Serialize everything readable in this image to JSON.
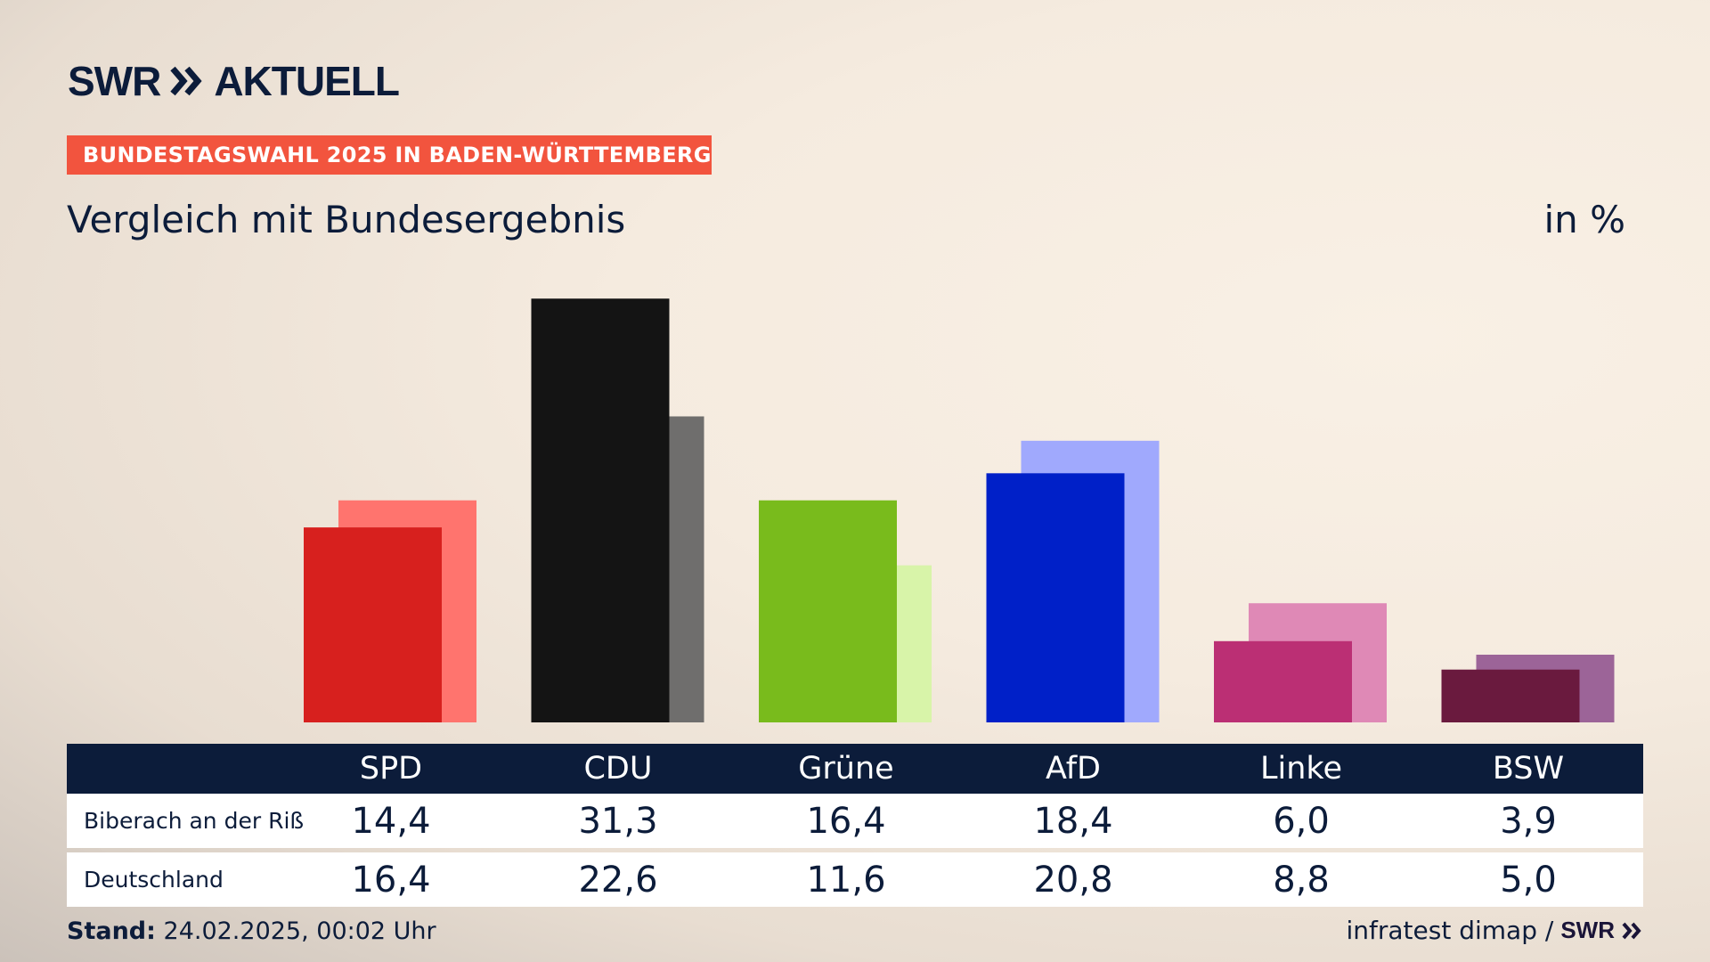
{
  "brand": {
    "logo_text": "SWR",
    "logo_suffix": "AKTUELL"
  },
  "header": {
    "tag": "BUNDESTAGSWAHL 2025 IN BADEN-WÜRTTEMBERG",
    "subtitle": "Vergleich mit Bundesergebnis",
    "unit": "in %"
  },
  "chart_data": {
    "type": "bar",
    "categories": [
      "SPD",
      "CDU",
      "Grüne",
      "AfD",
      "Linke",
      "BSW"
    ],
    "series": [
      {
        "name": "Biberach an der Riß",
        "values": [
          14.4,
          31.3,
          16.4,
          18.4,
          6.0,
          3.9
        ],
        "colors": [
          "#d7201e",
          "#141414",
          "#79bb1c",
          "#0020c8",
          "#bb2f74",
          "#6a1a3e"
        ]
      },
      {
        "name": "Deutschland",
        "values": [
          16.4,
          22.6,
          11.6,
          20.8,
          8.8,
          5.0
        ],
        "colors": [
          "#ff746e",
          "#6f6e6d",
          "#d8f4a9",
          "#a0a9fd",
          "#df89b6",
          "#9c6498"
        ]
      }
    ],
    "legend": "table-below",
    "grid": false
  },
  "table": {
    "rows": [
      {
        "label": "Biberach an der Riß",
        "values": [
          "14,4",
          "31,3",
          "16,4",
          "18,4",
          "6,0",
          "3,9"
        ]
      },
      {
        "label": "Deutschland",
        "values": [
          "16,4",
          "22,6",
          "11,6",
          "20,8",
          "8,8",
          "5,0"
        ]
      }
    ]
  },
  "footer": {
    "stand_label": "Stand:",
    "stand_value": "24.02.2025, 00:02 Uhr",
    "source": "infratest dimap /",
    "source_logo": "SWR"
  }
}
